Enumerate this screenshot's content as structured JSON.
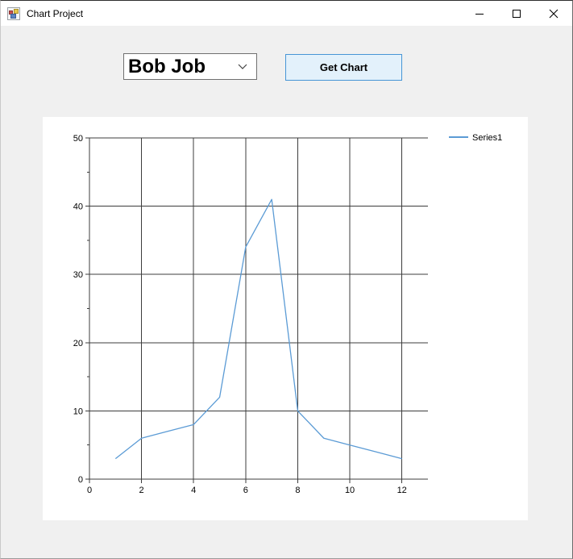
{
  "window": {
    "title": "Chart Project",
    "controls": [
      {
        "name": "minimize",
        "glyph": "–"
      },
      {
        "name": "maximize",
        "glyph": "□"
      },
      {
        "name": "close",
        "glyph": "✕"
      }
    ]
  },
  "toolbar": {
    "combo_value": "Bob Job",
    "button_label": "Get Chart"
  },
  "colors": {
    "window_bg": "#f0f0f0",
    "titlebar_bg": "#ffffff",
    "panel_bg": "#ffffff",
    "button_bg": "#e3f1fb",
    "button_border": "#4795d6",
    "combo_border": "#707070",
    "grid": "#3c3c3c",
    "series": "#5b9bd5"
  },
  "chart_data": {
    "type": "line",
    "title": "",
    "xlabel": "",
    "ylabel": "",
    "xlim": [
      0,
      13
    ],
    "ylim": [
      0,
      50
    ],
    "x_ticks": [
      0,
      2,
      4,
      6,
      8,
      10,
      12
    ],
    "y_ticks": [
      0,
      10,
      20,
      30,
      40,
      50
    ],
    "y_minor_step": 5,
    "grid": true,
    "legend": {
      "position": "right-top",
      "entries": [
        "Series1"
      ]
    },
    "series": [
      {
        "name": "Series1",
        "color": "#5b9bd5",
        "x": [
          1,
          2,
          3,
          4,
          5,
          6,
          7,
          8,
          9,
          10,
          11,
          12
        ],
        "y": [
          3,
          6,
          7,
          8,
          12,
          34,
          41,
          10,
          6,
          5,
          4,
          3
        ]
      }
    ]
  }
}
